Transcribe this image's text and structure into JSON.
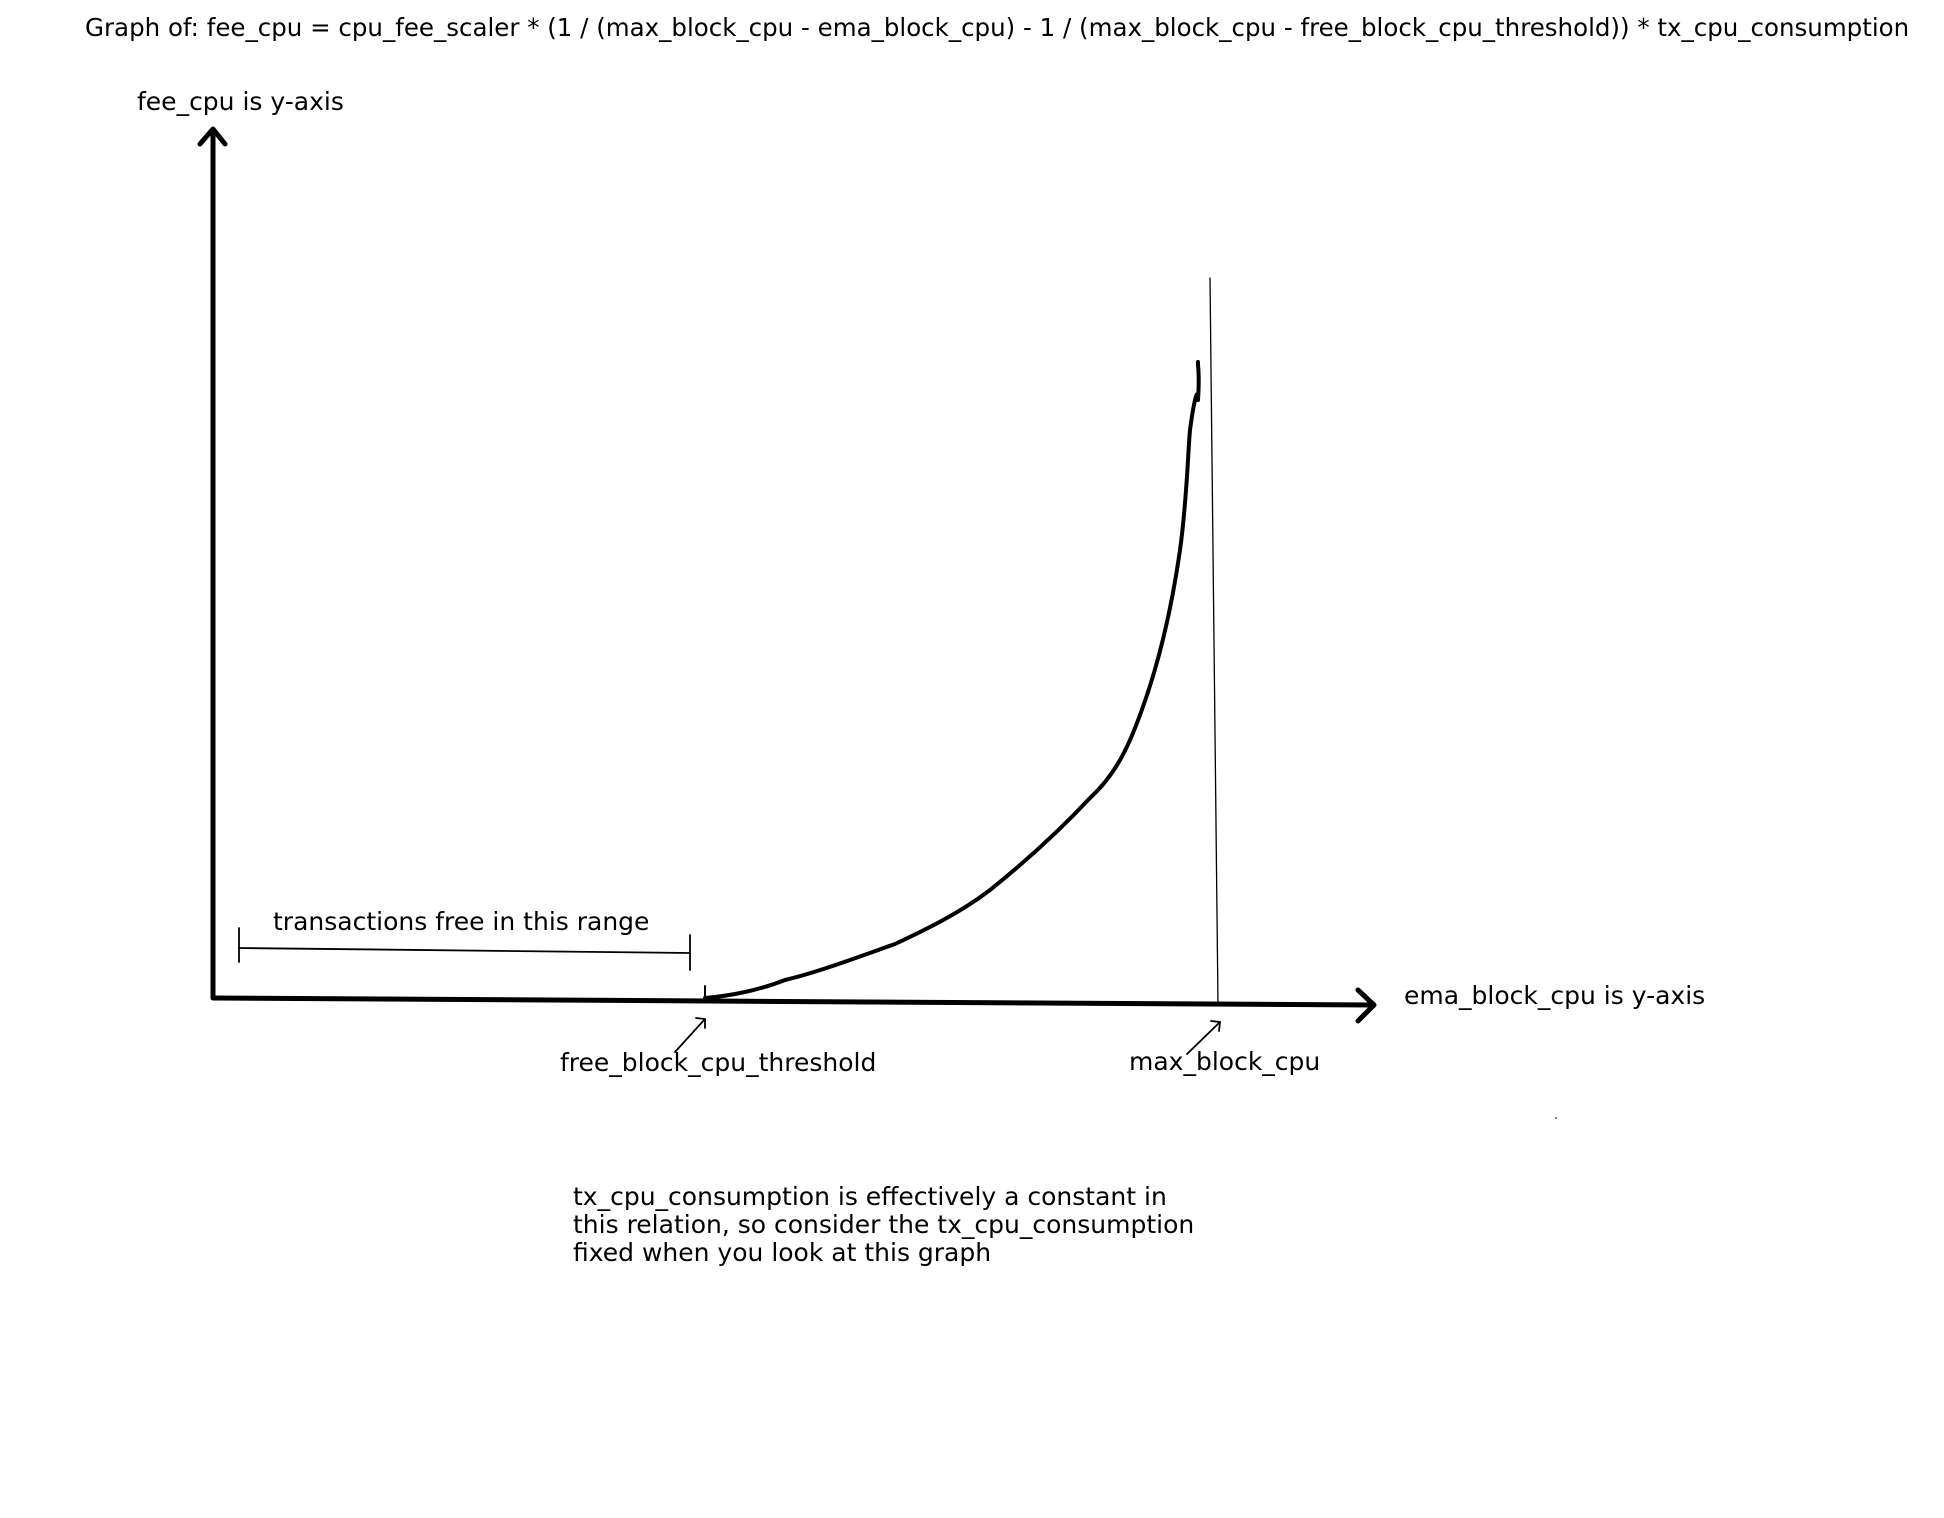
{
  "title": "Graph of:  fee_cpu = cpu_fee_scaler * (1 / (max_block_cpu - ema_block_cpu) - 1 / (max_block_cpu - free_block_cpu_threshold)) * tx_cpu_consumption",
  "axes": {
    "y_label": "fee_cpu is y-axis",
    "x_label": "ema_block_cpu is y-axis"
  },
  "annotations": {
    "free_range": "transactions free in this range",
    "threshold": "free_block_cpu_threshold",
    "max": "max_block_cpu"
  },
  "note": {
    "lines": [
      "tx_cpu_consumption is effectively a constant in",
      "this relation, so consider the tx_cpu_consumption",
      "fixed when you look at this graph"
    ]
  }
}
